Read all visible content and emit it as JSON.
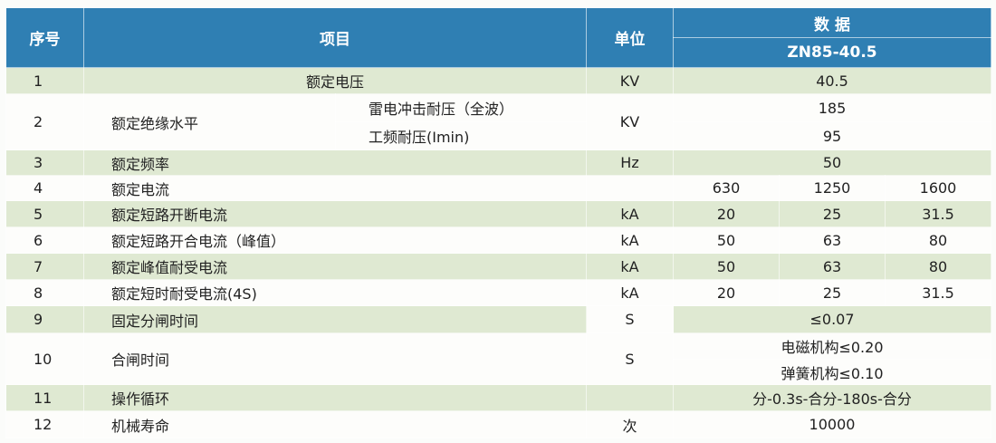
{
  "header": {
    "no": "序号",
    "item": "项目",
    "unit": "单位",
    "data": "数 据",
    "model": "ZN85-40.5"
  },
  "colors": {
    "header": "#2f7fb3",
    "row_green": "#dfe9d2"
  },
  "rows": [
    {
      "no": "1",
      "item": "额定电压",
      "unit": "KV",
      "value": "40.5"
    },
    {
      "no": "2",
      "item": "额定绝缘水平",
      "sub1": "雷电冲击耐压（全波）",
      "sub2": "工频耐压(Imin)",
      "unit": "KV",
      "value1": "185",
      "value2": "95"
    },
    {
      "no": "3",
      "item": "额定频率",
      "unit": "Hz",
      "value": "50"
    },
    {
      "no": "4",
      "item": "额定电流",
      "unit": "",
      "values": [
        "630",
        "1250",
        "1600"
      ]
    },
    {
      "no": "5",
      "item": "额定短路开断电流",
      "unit": "kA",
      "values": [
        "20",
        "25",
        "31.5"
      ]
    },
    {
      "no": "6",
      "item": "额定短路开合电流（峰值）",
      "unit": "kA",
      "values": [
        "50",
        "63",
        "80"
      ]
    },
    {
      "no": "7",
      "item": "额定峰值耐受电流",
      "unit": "kA",
      "values": [
        "50",
        "63",
        "80"
      ]
    },
    {
      "no": "8",
      "item": "额定短时耐受电流(4S)",
      "unit": "kA",
      "values": [
        "20",
        "25",
        "31.5"
      ]
    },
    {
      "no": "9",
      "item": "固定分闸时间",
      "unit": "S",
      "value": "≤0.07"
    },
    {
      "no": "10",
      "item": "合闸时间",
      "unit": "S",
      "value1": "电磁机构≤0.20",
      "value2": "弹簧机构≤0.10"
    },
    {
      "no": "11",
      "item": "操作循环",
      "unit": "",
      "value": "分-0.3s-合分-180s-合分"
    },
    {
      "no": "12",
      "item": "机械寿命",
      "unit": "次",
      "value": "10000"
    }
  ]
}
